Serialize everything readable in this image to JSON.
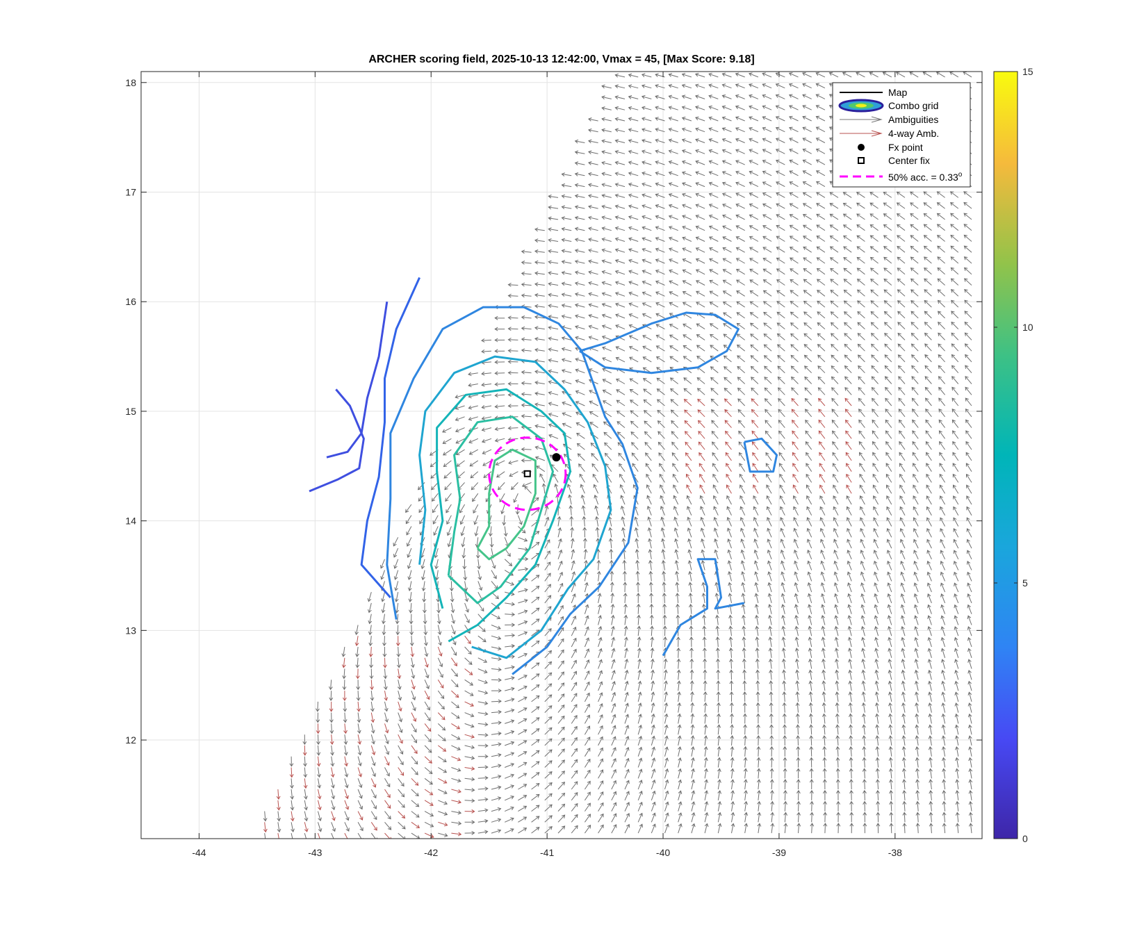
{
  "chart_data": {
    "type": "scatter",
    "title": "ARCHER scoring field, 2025-10-13 12:42:00, Vmax = 45, [Max Score: 9.18]",
    "xlabel": "",
    "ylabel": "",
    "xlim": [
      -44.5,
      -37.25
    ],
    "ylim": [
      11.1,
      18.1
    ],
    "xticks": [
      -44,
      -43,
      -42,
      -41,
      -40,
      -39,
      -38
    ],
    "xtick_labels": [
      "-44",
      "-43",
      "-42",
      "-41",
      "-40",
      "-39",
      "-38"
    ],
    "yticks": [
      12,
      13,
      14,
      15,
      16,
      17,
      18
    ],
    "ytick_labels": [
      "12",
      "13",
      "14",
      "15",
      "16",
      "17",
      "18"
    ],
    "grid": true,
    "legend_position": "top-right",
    "legend": [
      {
        "label": "Map",
        "marker": "black-line"
      },
      {
        "label": "Combo grid",
        "marker": "contour-ellipses"
      },
      {
        "label": "Ambiguities",
        "marker": "gray-arrow"
      },
      {
        "label": "4-way Amb.",
        "marker": "red-arrow"
      },
      {
        "label": "Fx point",
        "marker": "black-filled-circle"
      },
      {
        "label": "Center fix",
        "marker": "black-open-square"
      },
      {
        "label": "50% acc. = 0.33",
        "superscript": "o",
        "marker": "magenta-dashed-line"
      }
    ],
    "center_fix": {
      "lon": -41.17,
      "lat": 14.43
    },
    "fx_point": {
      "lon": -40.92,
      "lat": 14.58
    },
    "accuracy_circle": {
      "lon": -41.17,
      "lat": 14.43,
      "radius_deg": 0.33,
      "color": "#ff00ff"
    },
    "colorbar": {
      "min": 0,
      "max": 15,
      "ticks": [
        0,
        5,
        10,
        15
      ],
      "tick_labels": [
        "0",
        "5",
        "10",
        "15"
      ],
      "colormap": "parula"
    },
    "contours": [
      {
        "level": 3,
        "color": "#3f4fe0",
        "points": [
          [
            -43.05,
            14.27
          ],
          [
            -42.8,
            14.38
          ],
          [
            -42.62,
            14.48
          ],
          [
            -42.58,
            14.75
          ],
          [
            -42.7,
            15.05
          ],
          [
            -42.82,
            15.2
          ]
        ]
      },
      {
        "level": 3,
        "color": "#3f4fe0",
        "points": [
          [
            -42.9,
            14.58
          ],
          [
            -42.72,
            14.63
          ],
          [
            -42.6,
            14.8
          ],
          [
            -42.55,
            15.12
          ],
          [
            -42.45,
            15.5
          ],
          [
            -42.38,
            16.0
          ]
        ]
      },
      {
        "level": 4,
        "color": "#3263e8",
        "points": [
          [
            -42.35,
            13.3
          ],
          [
            -42.6,
            13.6
          ],
          [
            -42.55,
            14.0
          ],
          [
            -42.45,
            14.4
          ],
          [
            -42.4,
            14.9
          ],
          [
            -42.4,
            15.3
          ],
          [
            -42.3,
            15.75
          ],
          [
            -42.1,
            16.22
          ]
        ]
      },
      {
        "level": 5,
        "color": "#2f86e0",
        "points": [
          [
            -42.3,
            13.1
          ],
          [
            -42.38,
            13.6
          ],
          [
            -42.35,
            14.2
          ],
          [
            -42.35,
            14.8
          ],
          [
            -42.15,
            15.3
          ],
          [
            -41.9,
            15.75
          ],
          [
            -41.55,
            15.95
          ],
          [
            -41.2,
            15.95
          ],
          [
            -40.9,
            15.8
          ],
          [
            -40.7,
            15.55
          ],
          [
            -40.6,
            15.25
          ],
          [
            -40.5,
            14.95
          ],
          [
            -40.35,
            14.7
          ],
          [
            -40.22,
            14.3
          ],
          [
            -40.3,
            13.8
          ],
          [
            -40.55,
            13.4
          ],
          [
            -40.8,
            13.15
          ],
          [
            -41.0,
            12.85
          ],
          [
            -41.3,
            12.6
          ]
        ]
      },
      {
        "level": 5,
        "color": "#2f86e0",
        "points": [
          [
            -40.72,
            15.55
          ],
          [
            -40.5,
            15.62
          ],
          [
            -40.1,
            15.8
          ],
          [
            -39.8,
            15.9
          ],
          [
            -39.55,
            15.88
          ],
          [
            -39.35,
            15.75
          ],
          [
            -39.45,
            15.55
          ],
          [
            -39.7,
            15.4
          ],
          [
            -40.1,
            15.35
          ],
          [
            -40.5,
            15.4
          ],
          [
            -40.72,
            15.55
          ]
        ]
      },
      {
        "level": 5,
        "color": "#2f86e0",
        "points": [
          [
            -39.3,
            14.72
          ],
          [
            -39.15,
            14.75
          ],
          [
            -39.02,
            14.6
          ],
          [
            -39.05,
            14.45
          ],
          [
            -39.25,
            14.45
          ],
          [
            -39.3,
            14.72
          ]
        ]
      },
      {
        "level": 5,
        "color": "#2f86e0",
        "points": [
          [
            -40.0,
            12.77
          ],
          [
            -39.85,
            13.05
          ],
          [
            -39.62,
            13.2
          ],
          [
            -39.62,
            13.4
          ],
          [
            -39.7,
            13.65
          ],
          [
            -39.55,
            13.65
          ],
          [
            -39.5,
            13.3
          ],
          [
            -39.55,
            13.2
          ],
          [
            -39.3,
            13.25
          ]
        ]
      },
      {
        "level": 6,
        "color": "#1fa5d0",
        "points": [
          [
            -42.1,
            13.6
          ],
          [
            -42.05,
            14.1
          ],
          [
            -42.1,
            14.6
          ],
          [
            -42.05,
            15.0
          ],
          [
            -41.8,
            15.35
          ],
          [
            -41.45,
            15.5
          ],
          [
            -41.1,
            15.45
          ],
          [
            -40.85,
            15.2
          ],
          [
            -40.65,
            14.9
          ],
          [
            -40.5,
            14.5
          ],
          [
            -40.45,
            14.1
          ],
          [
            -40.6,
            13.65
          ],
          [
            -40.82,
            13.38
          ],
          [
            -41.05,
            13.0
          ],
          [
            -41.35,
            12.75
          ],
          [
            -41.65,
            12.85
          ]
        ]
      },
      {
        "level": 7,
        "color": "#14b4b8",
        "points": [
          [
            -41.9,
            13.2
          ],
          [
            -42.0,
            13.6
          ],
          [
            -41.9,
            14.0
          ],
          [
            -41.95,
            14.45
          ],
          [
            -41.95,
            14.85
          ],
          [
            -41.7,
            15.15
          ],
          [
            -41.35,
            15.2
          ],
          [
            -41.05,
            15.0
          ],
          [
            -40.85,
            14.8
          ],
          [
            -40.8,
            14.45
          ],
          [
            -40.95,
            14.0
          ],
          [
            -41.1,
            13.6
          ],
          [
            -41.35,
            13.3
          ],
          [
            -41.6,
            13.05
          ],
          [
            -41.85,
            12.9
          ]
        ]
      },
      {
        "level": 8,
        "color": "#2bbfa2",
        "points": [
          [
            -41.85,
            13.5
          ],
          [
            -41.8,
            13.9
          ],
          [
            -41.75,
            14.2
          ],
          [
            -41.8,
            14.6
          ],
          [
            -41.6,
            14.9
          ],
          [
            -41.3,
            14.95
          ],
          [
            -41.05,
            14.75
          ],
          [
            -40.95,
            14.45
          ],
          [
            -41.05,
            14.1
          ],
          [
            -41.15,
            13.75
          ],
          [
            -41.4,
            13.4
          ],
          [
            -41.6,
            13.25
          ],
          [
            -41.85,
            13.5
          ]
        ]
      },
      {
        "level": 9,
        "color": "#45c48a",
        "points": [
          [
            -41.6,
            13.75
          ],
          [
            -41.5,
            13.95
          ],
          [
            -41.5,
            14.25
          ],
          [
            -41.45,
            14.55
          ],
          [
            -41.3,
            14.65
          ],
          [
            -41.1,
            14.55
          ],
          [
            -41.1,
            14.25
          ],
          [
            -41.2,
            13.95
          ],
          [
            -41.35,
            13.75
          ],
          [
            -41.5,
            13.65
          ],
          [
            -41.6,
            13.75
          ]
        ]
      }
    ]
  }
}
